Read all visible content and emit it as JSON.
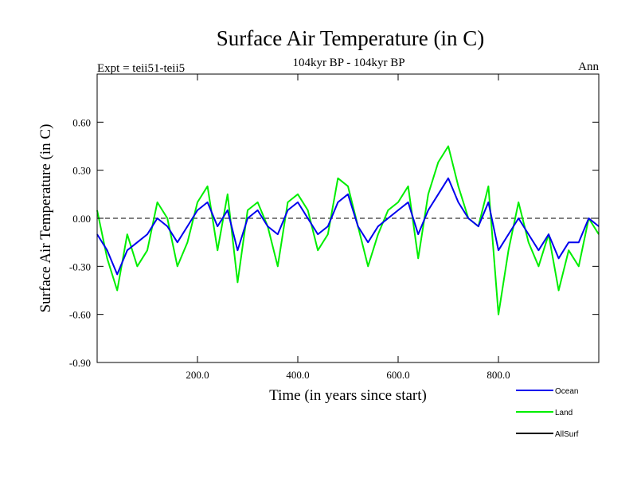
{
  "chart_data": {
    "type": "line",
    "title": "Surface Air Temperature (in C)",
    "subtitle": "104kyr BP - 104kyr BP",
    "left_label": "Expt = teii51-teii5",
    "right_label": "Ann",
    "xlabel": "Time (in years since start)",
    "ylabel": "Surface Air Temperature (in C)",
    "xlim": [
      0,
      1000
    ],
    "ylim": [
      -0.9,
      0.9
    ],
    "x_ticks": [
      200,
      400,
      600,
      800
    ],
    "x_tick_labels": [
      "200.0",
      "400.0",
      "600.0",
      "800.0"
    ],
    "y_ticks": [
      -0.9,
      -0.6,
      -0.3,
      0.0,
      0.3,
      0.6
    ],
    "y_tick_labels": [
      "-0.90",
      "-0.60",
      "-0.30",
      "0.00",
      "0.30",
      "0.60"
    ],
    "zero_line": true,
    "grid": false,
    "legend_position": "bottom-right",
    "series": [
      {
        "name": "Land",
        "color": "#00ee00",
        "x": [
          0,
          20,
          40,
          60,
          80,
          100,
          120,
          140,
          160,
          180,
          200,
          220,
          240,
          260,
          280,
          300,
          320,
          340,
          360,
          380,
          400,
          420,
          440,
          460,
          480,
          500,
          520,
          540,
          560,
          580,
          600,
          620,
          640,
          660,
          680,
          700,
          720,
          740,
          760,
          780,
          800,
          820,
          840,
          860,
          880,
          900,
          920,
          940,
          960,
          980,
          1000
        ],
        "values": [
          0.05,
          -0.25,
          -0.45,
          -0.1,
          -0.3,
          -0.2,
          0.1,
          0.0,
          -0.3,
          -0.15,
          0.1,
          0.2,
          -0.2,
          0.15,
          -0.4,
          0.05,
          0.1,
          -0.05,
          -0.3,
          0.1,
          0.15,
          0.05,
          -0.2,
          -0.1,
          0.25,
          0.2,
          -0.05,
          -0.3,
          -0.1,
          0.05,
          0.1,
          0.2,
          -0.25,
          0.15,
          0.35,
          0.45,
          0.2,
          0.0,
          -0.05,
          0.2,
          -0.6,
          -0.2,
          0.1,
          -0.15,
          -0.3,
          -0.1,
          -0.45,
          -0.2,
          -0.3,
          0.0,
          -0.1
        ]
      },
      {
        "name": "Ocean",
        "color": "#0000ee",
        "x": [
          0,
          20,
          40,
          60,
          80,
          100,
          120,
          140,
          160,
          180,
          200,
          220,
          240,
          260,
          280,
          300,
          320,
          340,
          360,
          380,
          400,
          420,
          440,
          460,
          480,
          500,
          520,
          540,
          560,
          580,
          600,
          620,
          640,
          660,
          680,
          700,
          720,
          740,
          760,
          780,
          800,
          820,
          840,
          860,
          880,
          900,
          920,
          940,
          960,
          980,
          1000
        ],
        "values": [
          -0.1,
          -0.2,
          -0.35,
          -0.2,
          -0.15,
          -0.1,
          0.0,
          -0.05,
          -0.15,
          -0.05,
          0.05,
          0.1,
          -0.05,
          0.05,
          -0.2,
          0.0,
          0.05,
          -0.05,
          -0.1,
          0.05,
          0.1,
          0.0,
          -0.1,
          -0.05,
          0.1,
          0.15,
          -0.05,
          -0.15,
          -0.05,
          0.0,
          0.05,
          0.1,
          -0.1,
          0.05,
          0.15,
          0.25,
          0.1,
          0.0,
          -0.05,
          0.1,
          -0.2,
          -0.1,
          0.0,
          -0.1,
          -0.2,
          -0.1,
          -0.25,
          -0.15,
          -0.15,
          0.0,
          -0.05
        ]
      },
      {
        "name": "AllSurf",
        "color": "#000000",
        "x": [],
        "values": []
      }
    ]
  }
}
